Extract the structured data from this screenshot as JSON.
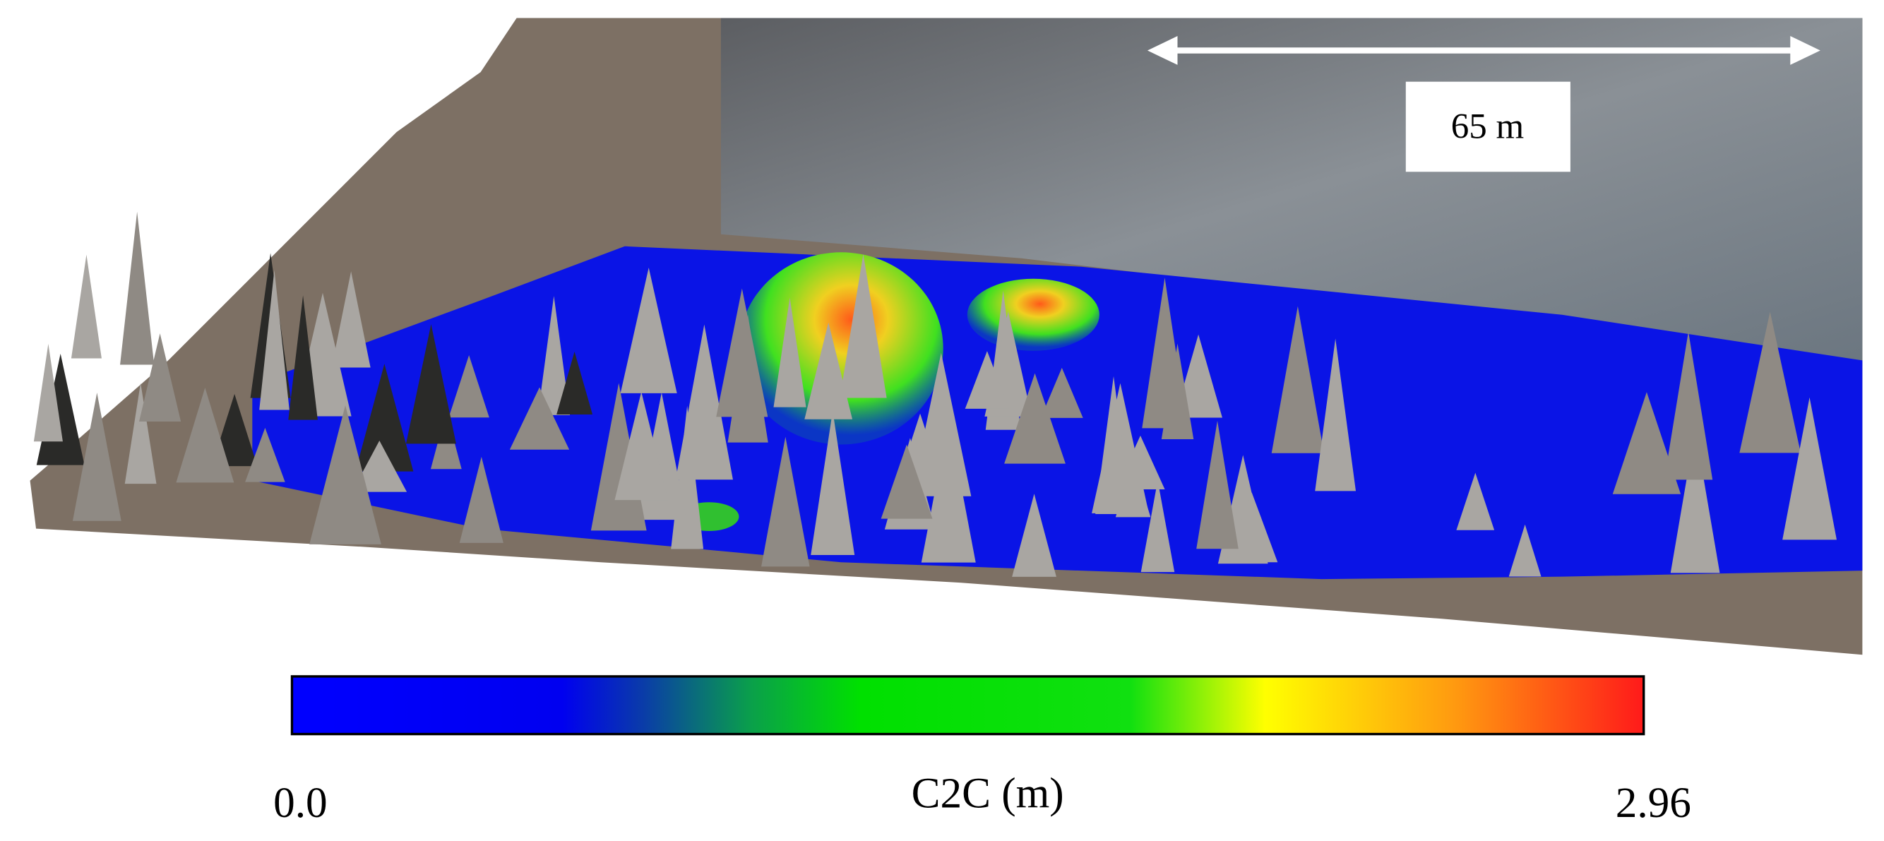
{
  "scale_bar": {
    "label": "65 m"
  },
  "colorbar": {
    "title": "C2C (m)",
    "min_label": "0.0",
    "max_label": "2.96"
  }
}
